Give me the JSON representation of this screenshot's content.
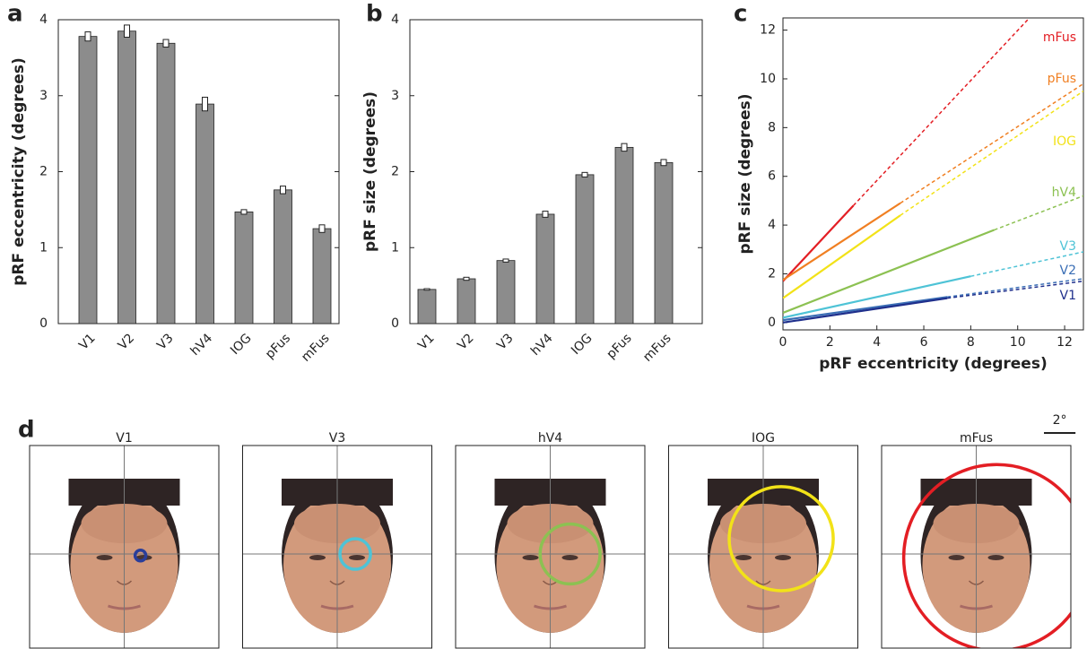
{
  "chart_data": [
    {
      "type": "bar",
      "panel_label": "a",
      "ylabel": "pRF eccentricity (degrees)",
      "categories": [
        "V1",
        "V2",
        "V3",
        "hV4",
        "IOG",
        "pFus",
        "mFus"
      ],
      "values": [
        3.78,
        3.85,
        3.69,
        2.89,
        1.47,
        1.76,
        1.25
      ],
      "errors": [
        0.06,
        0.08,
        0.05,
        0.09,
        0.03,
        0.05,
        0.05
      ],
      "color": "#8c8c8c",
      "ylim": [
        0,
        4
      ],
      "yticks": [
        0,
        1,
        2,
        3,
        4
      ]
    },
    {
      "type": "bar",
      "panel_label": "b",
      "ylabel": "pRF size (degrees)",
      "categories": [
        "V1",
        "V2",
        "V3",
        "hV4",
        "IOG",
        "pFus",
        "mFus"
      ],
      "values": [
        0.45,
        0.59,
        0.83,
        1.44,
        1.96,
        2.32,
        2.12
      ],
      "errors": [
        0.01,
        0.02,
        0.02,
        0.04,
        0.03,
        0.05,
        0.04
      ],
      "color": "#8c8c8c",
      "ylim": [
        0,
        4
      ],
      "yticks": [
        0,
        1,
        2,
        3,
        4
      ]
    },
    {
      "type": "line",
      "panel_label": "c",
      "xlabel": "pRF eccentricity (degrees)",
      "ylabel": "pRF size (degrees)",
      "xlim": [
        0,
        12.8
      ],
      "ylim": [
        -0.3,
        12.5
      ],
      "xticks": [
        0,
        2,
        4,
        6,
        8,
        10,
        12
      ],
      "yticks": [
        0,
        2,
        4,
        6,
        8,
        10,
        12
      ],
      "series": [
        {
          "name": "mFus",
          "color": "#e31e24",
          "x": [
            0,
            3
          ],
          "values": [
            1.7,
            4.8
          ],
          "extrapolation": {
            "x": [
              3,
              10.5
            ],
            "values": [
              4.8,
              12.5
            ]
          }
        },
        {
          "name": "pFus",
          "color": "#f07f22",
          "x": [
            0,
            5
          ],
          "values": [
            1.75,
            4.9
          ],
          "extrapolation": {
            "x": [
              5,
              12.8
            ],
            "values": [
              4.9,
              9.8
            ]
          }
        },
        {
          "name": "IOG",
          "color": "#f2e218",
          "x": [
            0,
            5
          ],
          "values": [
            1.0,
            4.4
          ],
          "extrapolation": {
            "x": [
              5,
              12.8
            ],
            "values": [
              4.4,
              9.5
            ]
          }
        },
        {
          "name": "hV4",
          "color": "#8cc152",
          "x": [
            0,
            9
          ],
          "values": [
            0.4,
            3.8
          ],
          "extrapolation": {
            "x": [
              9,
              12.8
            ],
            "values": [
              3.8,
              5.2
            ]
          }
        },
        {
          "name": "V3",
          "color": "#4ec3d6",
          "x": [
            0,
            8
          ],
          "values": [
            0.2,
            1.9
          ],
          "extrapolation": {
            "x": [
              8,
              12.8
            ],
            "values": [
              1.9,
              2.9
            ]
          }
        },
        {
          "name": "V2",
          "color": "#3a6eb5",
          "x": [
            0,
            7
          ],
          "values": [
            0.1,
            1.05
          ],
          "extrapolation": {
            "x": [
              7,
              12.8
            ],
            "values": [
              1.05,
              1.8
            ]
          }
        },
        {
          "name": "V1",
          "color": "#1f2f8c",
          "x": [
            0,
            7
          ],
          "values": [
            0.0,
            1.0
          ],
          "extrapolation": {
            "x": [
              7,
              12.8
            ],
            "values": [
              1.0,
              1.7
            ]
          }
        }
      ]
    },
    {
      "type": "prf",
      "panel_label": "d",
      "xlim": [
        -6,
        6
      ],
      "scale_bar": {
        "value": 2,
        "label": "2°"
      },
      "series": [
        {
          "name": "V1",
          "color": "#2a3e9a",
          "x": 1.03,
          "y": -0.1,
          "size": 0.34
        },
        {
          "name": "V3",
          "color": "#4ec3d6",
          "x": 1.14,
          "y": 0.0,
          "size": 0.97
        },
        {
          "name": "hV4",
          "color": "#8cc152",
          "x": 1.26,
          "y": 0.0,
          "size": 1.9
        },
        {
          "name": "IOG",
          "color": "#f2e218",
          "x": 1.14,
          "y": 0.97,
          "size": 3.3
        },
        {
          "name": "mFus",
          "color": "#e31e24",
          "x": 1.3,
          "y": -0.23,
          "size": 5.9
        }
      ]
    }
  ]
}
